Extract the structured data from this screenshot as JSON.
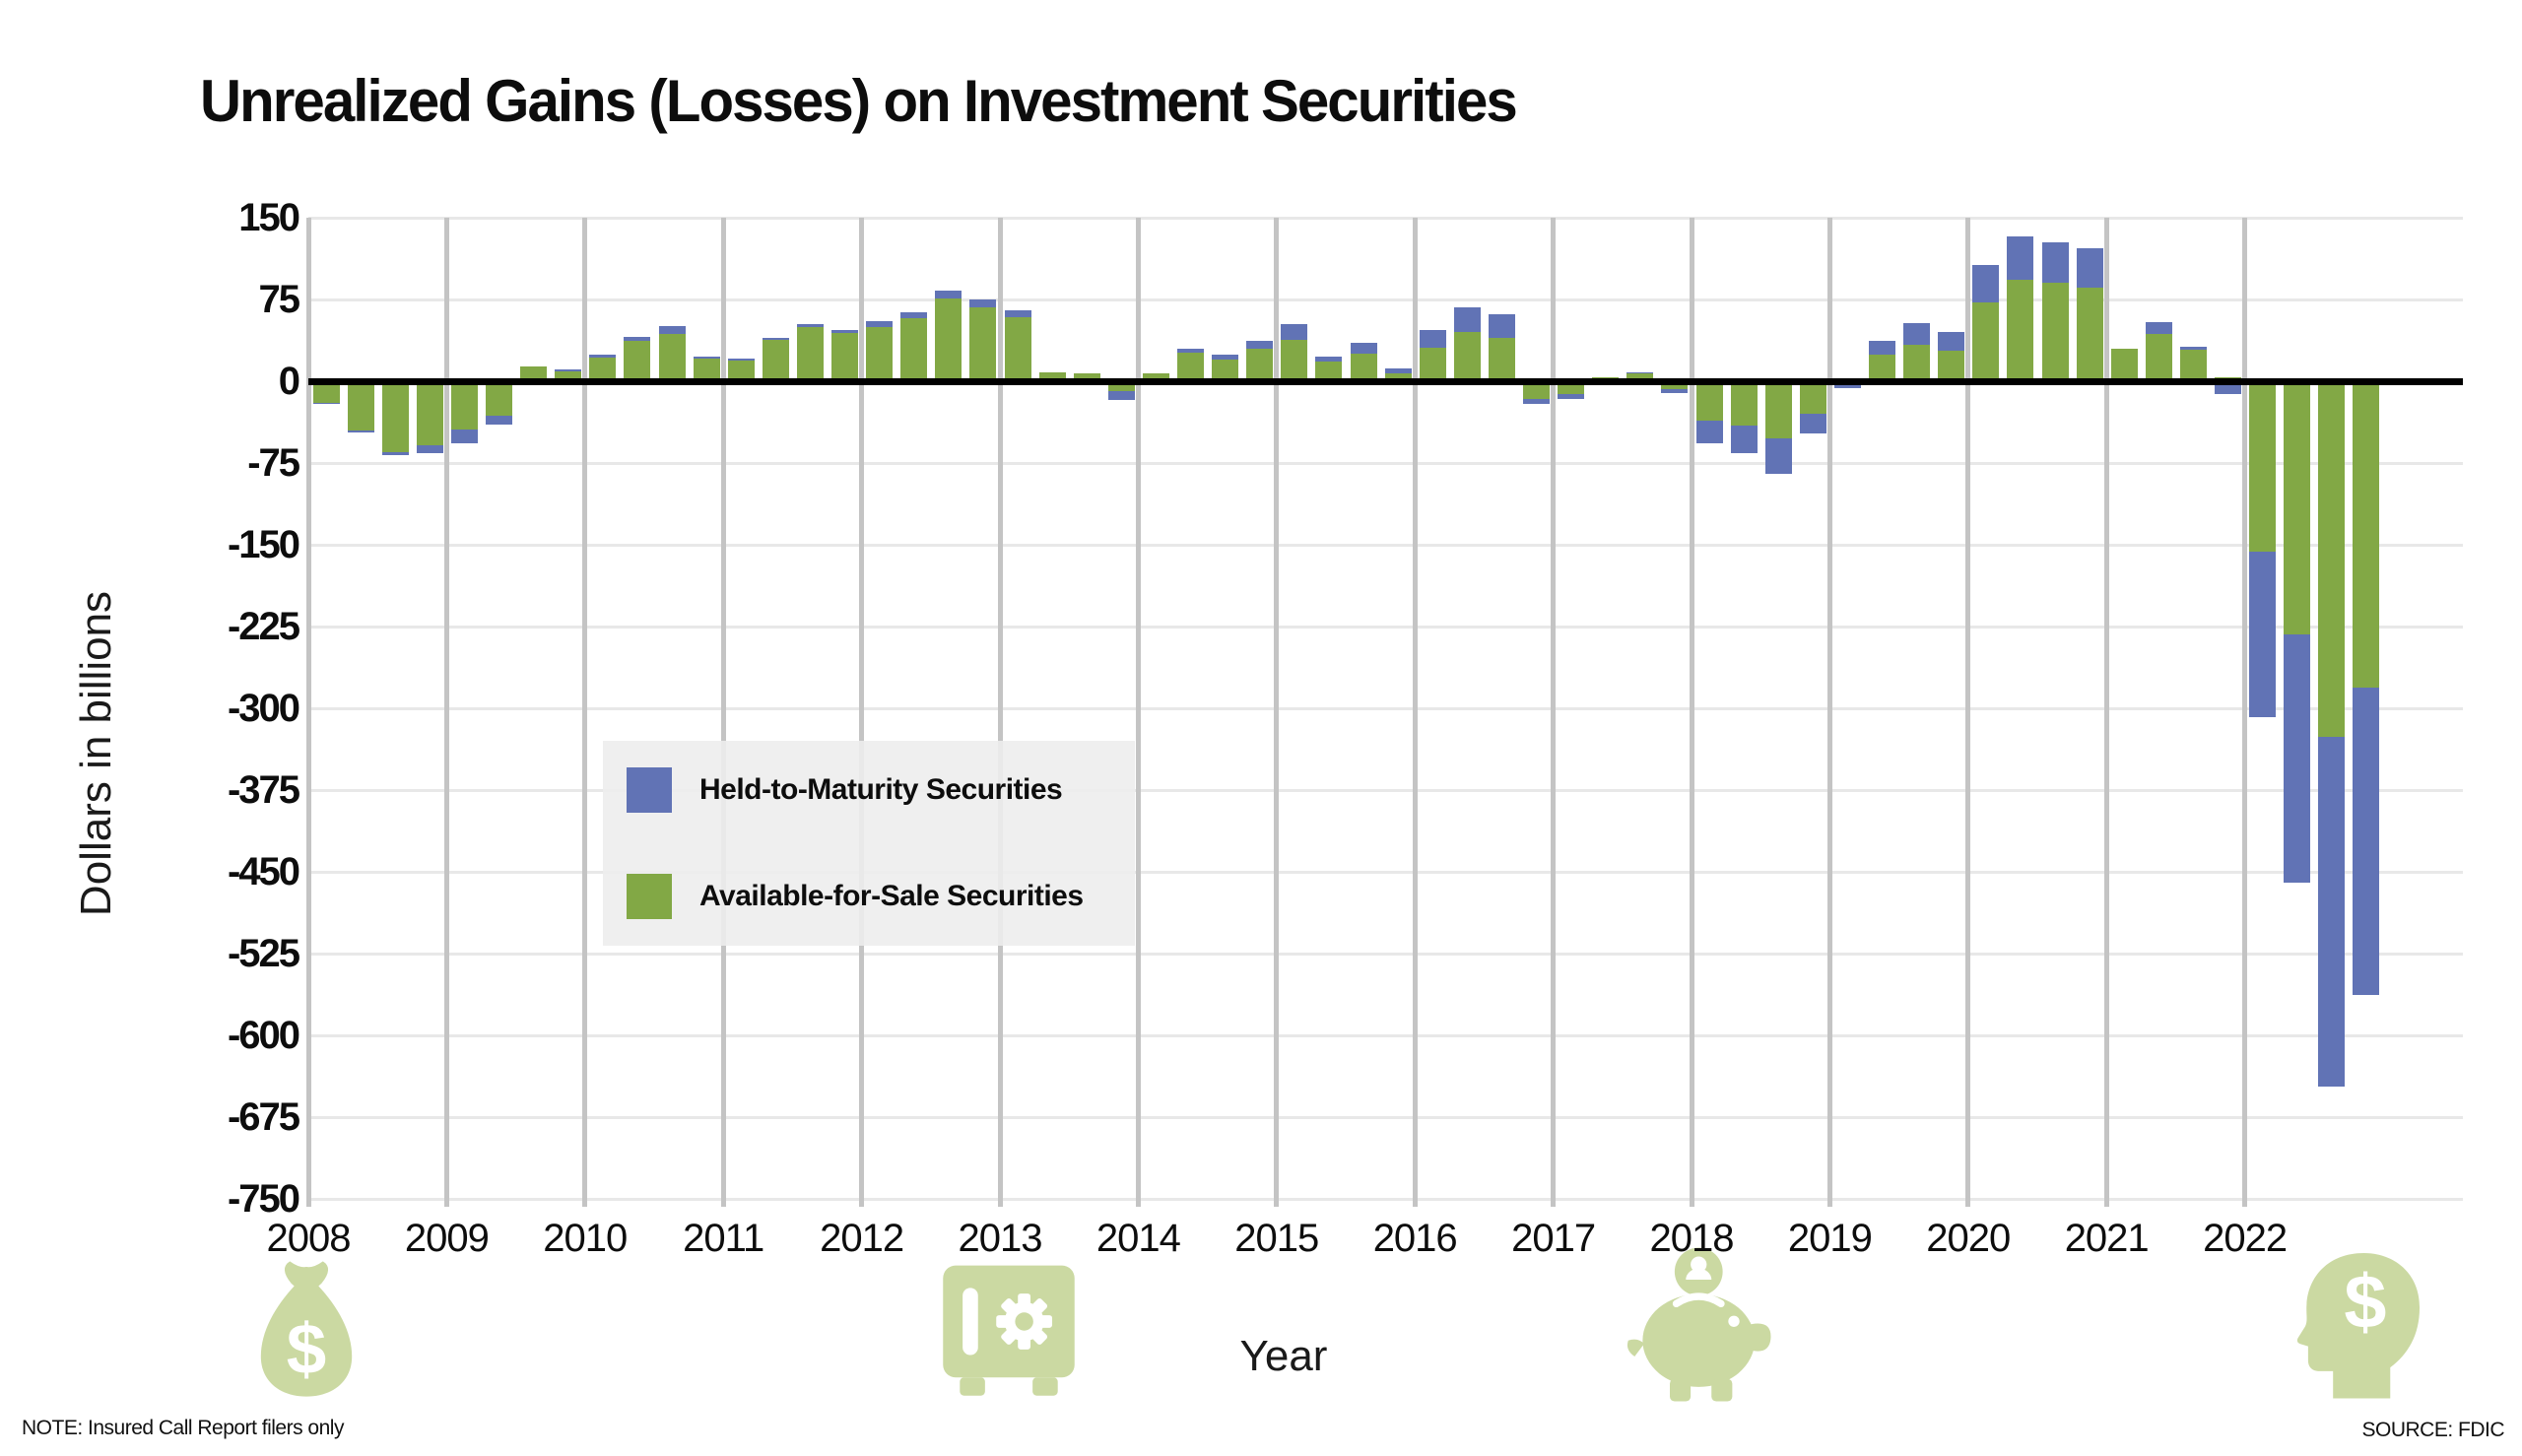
{
  "title": "Unrealized Gains (Losses) on Investment Securities",
  "note": "NOTE: Insured Call Report filers only",
  "source": "SOURCE: FDIC",
  "icons": {
    "color": "#cbd9a2",
    "names": [
      "money-bag",
      "safe",
      "piggy-bank",
      "head-with-dollar"
    ]
  },
  "chart_data": {
    "type": "bar",
    "stacked": true,
    "title": "Unrealized Gains (Losses) on Investment Securities",
    "xlabel": "Year",
    "ylabel": "Dollars in billions",
    "ylim": [
      -750,
      150
    ],
    "ytick_step": 75,
    "yticks": [
      150,
      75,
      0,
      -75,
      -150,
      -225,
      -300,
      -375,
      -450,
      -525,
      -600,
      -675,
      -750
    ],
    "grid": "horizontal-light, vertical-year-separators",
    "legend_position": "inside-left-middle",
    "categories": [
      "2008",
      "2009",
      "2010",
      "2011",
      "2012",
      "2013",
      "2014",
      "2015",
      "2016",
      "2017",
      "2018",
      "2019",
      "2020",
      "2021",
      "2022"
    ],
    "quarters_per_year": 4,
    "units": "billions of dollars, quarterly",
    "legend": [
      {
        "label": "Held-to-Maturity Securities",
        "color": "#6173b5"
      },
      {
        "label": "Available-for-Sale Securities",
        "color": "#82a845"
      }
    ],
    "series": [
      {
        "name": "Available-for-Sale Securities",
        "color": "#82a845",
        "values": [
          -20,
          -45,
          -65,
          -59,
          -44,
          -32,
          14,
          9,
          22,
          37,
          43,
          21,
          19,
          38,
          50,
          44,
          50,
          58,
          76,
          68,
          59,
          8,
          7,
          -9,
          7,
          26,
          20,
          30,
          38,
          18,
          25,
          7,
          31,
          45,
          40,
          -16,
          -12,
          4,
          7,
          -7,
          -36,
          -41,
          -52,
          -30,
          -4,
          24,
          33,
          28,
          72,
          93,
          90,
          86,
          30,
          43,
          29,
          4,
          -156,
          -232,
          -326,
          -281
        ]
      },
      {
        "name": "Held-to-Maturity Securities",
        "color": "#6173b5",
        "values": [
          -1,
          -2,
          -3,
          -7,
          -13,
          -8,
          -2,
          2,
          2,
          4,
          8,
          2,
          2,
          2,
          2,
          3,
          5,
          5,
          7,
          7,
          6,
          -4,
          -4,
          -8,
          -4,
          4,
          4,
          7,
          14,
          5,
          10,
          5,
          16,
          23,
          21,
          -5,
          -4,
          -3,
          1,
          -4,
          -21,
          -25,
          -33,
          -18,
          -2,
          13,
          20,
          17,
          35,
          40,
          37,
          36,
          0,
          11,
          3,
          -12,
          -152,
          -228,
          -321,
          -282
        ]
      }
    ]
  }
}
